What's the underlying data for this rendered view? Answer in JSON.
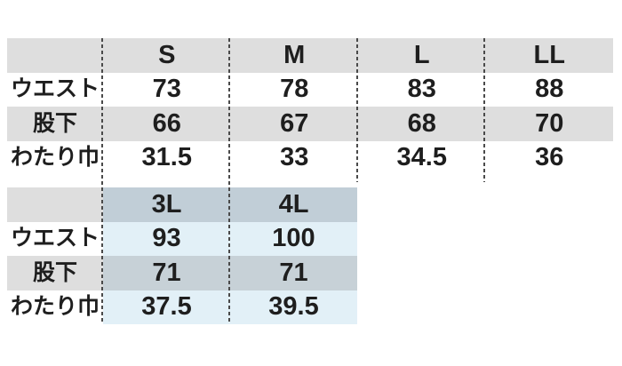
{
  "colors": {
    "page-bg": "#ffffff",
    "header-gray": "#dedede",
    "header-blue": "#c1ced7",
    "row-blue-light": "#e2f0f7",
    "row-blue-mid": "#c7d1d7",
    "text": "#1e1e1e",
    "dash": "#4a4a4a"
  },
  "chart_data": [
    {
      "type": "table",
      "name": "size-table-s-ll",
      "columns": [
        "",
        "S",
        "M",
        "L",
        "LL"
      ],
      "rows": [
        {
          "label": "ウエスト",
          "values": [
            "73",
            "78",
            "83",
            "88"
          ]
        },
        {
          "label": "股下",
          "values": [
            "66",
            "67",
            "68",
            "70"
          ]
        },
        {
          "label": "わたり巾",
          "values": [
            "31.5",
            "33",
            "34.5",
            "36"
          ]
        }
      ],
      "layout": {
        "header_background": "gray",
        "alternating_row_backgrounds": [
          "white",
          "gray",
          "white"
        ],
        "column_separators": "dashed-vertical"
      }
    },
    {
      "type": "table",
      "name": "size-table-3l-4l",
      "columns": [
        "",
        "3L",
        "4L"
      ],
      "rows": [
        {
          "label": "ウエスト",
          "values": [
            "93",
            "100"
          ]
        },
        {
          "label": "股下",
          "values": [
            "71",
            "71"
          ]
        },
        {
          "label": "わたり巾",
          "values": [
            "37.5",
            "39.5"
          ]
        }
      ],
      "layout": {
        "header_background": "blue-gray",
        "alternating_row_backgrounds": [
          "light-blue",
          "mid-blue",
          "light-blue"
        ],
        "column_separators": "dashed-vertical"
      }
    }
  ]
}
